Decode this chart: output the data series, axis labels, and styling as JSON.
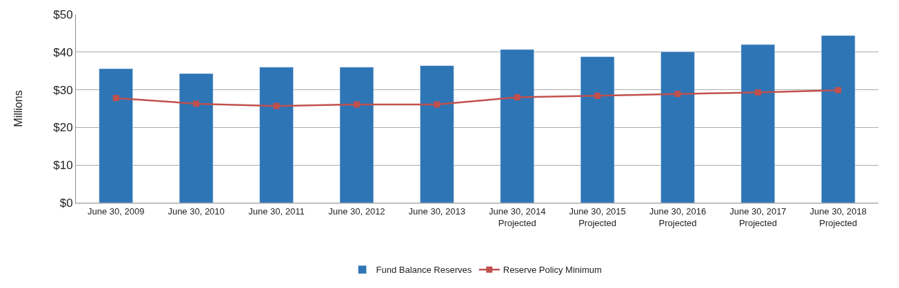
{
  "chart_data": {
    "type": "bar",
    "ylabel": "Millions",
    "categories": [
      "June 30, 2009",
      "June 30, 2010",
      "June 30, 2011",
      "June 30, 2012",
      "June 30, 2013",
      "June 30, 2014\nProjected",
      "June 30, 2015\nProjected",
      "June 30, 2016\nProjected",
      "June 30, 2017\nProjected",
      "June 30, 2018\nProjected"
    ],
    "series": [
      {
        "name": "Fund Balance Reserves",
        "color": "#2e75b6",
        "values": [
          35.6,
          34.3,
          36.0,
          36.0,
          36.4,
          40.7,
          38.8,
          40.1,
          42.0,
          44.4
        ]
      },
      {
        "name": "Reserve Policy Minimum",
        "type": "line",
        "color": "#c0504d",
        "marker": "square",
        "values": [
          27.8,
          26.3,
          25.7,
          26.1,
          26.1,
          28.0,
          28.4,
          28.9,
          29.3,
          29.9
        ]
      }
    ],
    "ylim": [
      0,
      50
    ],
    "yticks": [
      {
        "value": 0,
        "label": "$0"
      },
      {
        "value": 10,
        "label": "$10"
      },
      {
        "value": 20,
        "label": "$20"
      },
      {
        "value": 30,
        "label": "$30"
      },
      {
        "value": 40,
        "label": "$40"
      },
      {
        "value": 50,
        "label": "$50"
      }
    ],
    "grid": "y",
    "legend": "bottom"
  }
}
